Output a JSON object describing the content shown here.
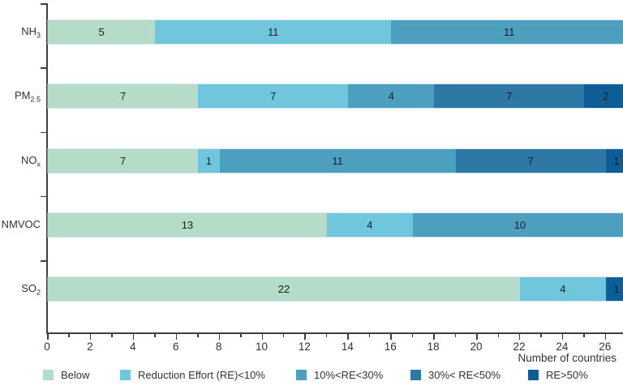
{
  "chart_data": {
    "type": "bar",
    "orientation": "horizontal-stacked",
    "title": "",
    "xlabel": "Number of countries",
    "ylabel": "",
    "xlim": [
      0,
      26.84
    ],
    "x_major_tick_step": 2,
    "x_minor_tick_step": 1,
    "x_tick_max": 26,
    "grid": false,
    "legend_position": "bottom",
    "categories": [
      "NH3",
      "PM2.5",
      "NOx",
      "NMVOC",
      "SO2"
    ],
    "category_labels": [
      {
        "main": "NH",
        "sub": "3"
      },
      {
        "main": "PM",
        "sub": "2.5"
      },
      {
        "main": "NO",
        "sub": "x"
      },
      {
        "main": "NMVOC",
        "sub": ""
      },
      {
        "main": "SO",
        "sub": "2"
      }
    ],
    "series": [
      {
        "name": "Below",
        "color": "#b4dcc8",
        "values": [
          5,
          7,
          7,
          13,
          22
        ]
      },
      {
        "name": "Reduction Effort (RE)<10%",
        "color": "#70c7dd",
        "values": [
          11,
          7,
          1,
          4,
          4
        ]
      },
      {
        "name": "10%<RE<30%",
        "color": "#4d9fc0",
        "values": [
          11,
          4,
          11,
          10,
          0
        ]
      },
      {
        "name": "30%< RE<50%",
        "color": "#2e78a6",
        "values": [
          0,
          7,
          7,
          0,
          0
        ]
      },
      {
        "name": "RE>50%",
        "color": "#0d5e96",
        "values": [
          0,
          2,
          1,
          0,
          1
        ]
      }
    ],
    "totals_per_category": [
      27,
      27,
      27,
      27,
      27
    ],
    "colors": {
      "axis": "#3f3f3f",
      "text": "#333333",
      "value_label": "#1f1f1f",
      "bar_edge": "#d9e8f2"
    },
    "legend_x_positions": [
      53,
      148,
      365,
      506,
      651
    ]
  }
}
